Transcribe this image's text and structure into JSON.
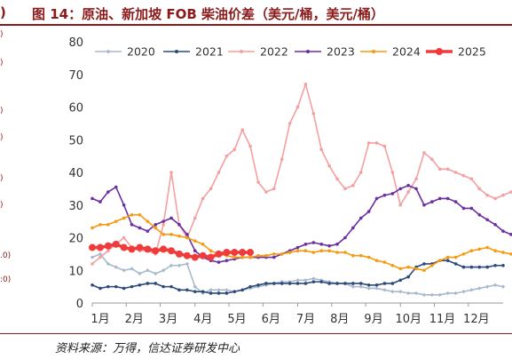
{
  "header": {
    "left_fragment": ")",
    "title": "图 14：原油、新加坡 FOB 柴油价差（美元/桶，美元/桶）"
  },
  "left_edge": {
    "items": [
      ")",
      ")",
      ")",
      ")",
      ")",
      ")",
      ".0)",
      ":0)"
    ]
  },
  "footer": {
    "source": "资料来源：万得，信达证券研发中心"
  },
  "colors": {
    "title": "#8B1A1A",
    "s2020": "#a9b9cc",
    "s2021": "#2e4a7b",
    "s2022": "#f4a0a0",
    "s2023": "#6a2fa0",
    "s2024": "#f59a12",
    "s2025": "#ef3b3b"
  },
  "chart_data": {
    "type": "line",
    "title": "",
    "xlabel": "",
    "ylabel": "",
    "ylim": [
      0,
      80
    ],
    "yticks": [
      "0",
      "10",
      "20",
      "30",
      "40",
      "50",
      "60",
      "70",
      "80"
    ],
    "xlim": [
      0,
      52
    ],
    "xticks": [
      {
        "label": "1月",
        "pos": 0
      },
      {
        "label": "2月",
        "pos": 4.3
      },
      {
        "label": "3月",
        "pos": 8.6
      },
      {
        "label": "4月",
        "pos": 13
      },
      {
        "label": "5月",
        "pos": 17.3
      },
      {
        "label": "6月",
        "pos": 21.6
      },
      {
        "label": "7月",
        "pos": 26
      },
      {
        "label": "8月",
        "pos": 30.3
      },
      {
        "label": "9月",
        "pos": 34.6
      },
      {
        "label": "10月",
        "pos": 39
      },
      {
        "label": "11月",
        "pos": 43.3
      },
      {
        "label": "12月",
        "pos": 47.6
      }
    ],
    "grid": false,
    "legend_position": "top",
    "series": [
      {
        "name": "2020",
        "color": "#a9b9cc",
        "marker": "diamond",
        "values": [
          14,
          15,
          12,
          11,
          10,
          10.5,
          9,
          10,
          9,
          10,
          11.5,
          11.5,
          12,
          5,
          3,
          4,
          4,
          4,
          3.5,
          4,
          4.5,
          5,
          5.5,
          6,
          6.5,
          6.5,
          7,
          7,
          7.5,
          7,
          6.5,
          6,
          6,
          5,
          5,
          4.5,
          4.5,
          4,
          3.5,
          3.5,
          3,
          3,
          2.5,
          2.5,
          2.5,
          3,
          3,
          3.5,
          4,
          4.5,
          5,
          5.5,
          5
        ]
      },
      {
        "name": "2021",
        "color": "#2e4a7b",
        "marker": "dot",
        "values": [
          5.5,
          4.5,
          5,
          5,
          4.5,
          5,
          5.5,
          6,
          6,
          5,
          5,
          4,
          4,
          3.5,
          3.5,
          3,
          3,
          3,
          3.5,
          4,
          5,
          5.5,
          6,
          6,
          6,
          6,
          6,
          6,
          6.5,
          6.5,
          6,
          6,
          6,
          6,
          6,
          5.5,
          5.5,
          6,
          6,
          7,
          8,
          11,
          12,
          12,
          13,
          13,
          12,
          11,
          11,
          11,
          11,
          11.5,
          11.5
        ]
      },
      {
        "name": "2022",
        "color": "#f4a0a0",
        "marker": "dot",
        "values": [
          12,
          14,
          16,
          18,
          20,
          17,
          16,
          16,
          15,
          24,
          40,
          24,
          20,
          26,
          32,
          35,
          40,
          45,
          47,
          53,
          48,
          37,
          34,
          35,
          44,
          55,
          60,
          67,
          58,
          47,
          42,
          38,
          35,
          36,
          40,
          49,
          49,
          48,
          40,
          30,
          34,
          38,
          46,
          44,
          41,
          41,
          40,
          39,
          38,
          35,
          33,
          32,
          33,
          34,
          35
        ]
      },
      {
        "name": "2023",
        "color": "#6a2fa0",
        "marker": "dot",
        "values": [
          32,
          31,
          34,
          35.5,
          30,
          24,
          23,
          22,
          24,
          25,
          26,
          24,
          21,
          16,
          14,
          13,
          12.5,
          13,
          13.5,
          14,
          14,
          14,
          14,
          14,
          15,
          16,
          17,
          18,
          18.5,
          18,
          17.5,
          18,
          20,
          23,
          26,
          28,
          32,
          33,
          33.5,
          35,
          36,
          35,
          30,
          31,
          32,
          32,
          31,
          29,
          29,
          27,
          25.5,
          24,
          22,
          21
        ]
      },
      {
        "name": "2024",
        "color": "#f59a12",
        "marker": "dot",
        "values": [
          23,
          24,
          24,
          25,
          26,
          27,
          27,
          25,
          23,
          21,
          21,
          20.5,
          20,
          19,
          18,
          16,
          15,
          14.5,
          14,
          14,
          14,
          14.5,
          14.5,
          15,
          15,
          15.5,
          16,
          16,
          15.5,
          16,
          16,
          15.5,
          15.5,
          14.5,
          14.5,
          14,
          13,
          12.5,
          11.5,
          10.5,
          11,
          10.5,
          10,
          11.5,
          13,
          14,
          14,
          15,
          16,
          16.5,
          17,
          16,
          15.5,
          15,
          16
        ]
      },
      {
        "name": "2025",
        "color": "#ef3b3b",
        "marker": "dot",
        "values": [
          17,
          17,
          17.5,
          18,
          17,
          16.5,
          17,
          16.5,
          16,
          16.5,
          16,
          15,
          14.5,
          14,
          14.5,
          14,
          15,
          15.5,
          15.5,
          15.5,
          15.5
        ]
      }
    ]
  }
}
